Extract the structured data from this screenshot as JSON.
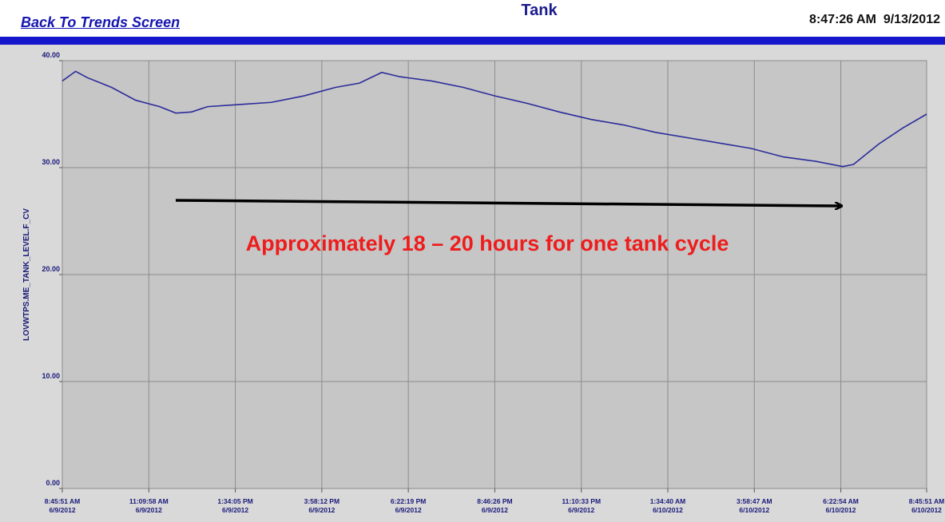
{
  "header": {
    "link": "Back To Trends Screen",
    "title": "Tank",
    "clock": "8:47:26 AM  9/13/2012"
  },
  "chart_data": {
    "type": "line",
    "y_label": "LOVWTPS.ME_TANK_LEVEL.F_CV",
    "annotation": "Approximately 18 – 20 hours for one tank cycle",
    "xlim": [
      "2012-06-09T08:45:51",
      "2012-06-10T08:45:51"
    ],
    "xticks": [
      {
        "value": "2012-06-09T08:45:51",
        "label": "8:45:51 AM\n6/9/2012"
      },
      {
        "value": "2012-06-09T11:09:58",
        "label": "11:09:58 AM\n6/9/2012"
      },
      {
        "value": "2012-06-09T13:34:05",
        "label": "1:34:05 PM\n6/9/2012"
      },
      {
        "value": "2012-06-09T15:58:12",
        "label": "3:58:12 PM\n6/9/2012"
      },
      {
        "value": "2012-06-09T18:22:19",
        "label": "6:22:19 PM\n6/9/2012"
      },
      {
        "value": "2012-06-09T20:46:26",
        "label": "8:46:26 PM\n6/9/2012"
      },
      {
        "value": "2012-06-09T23:10:33",
        "label": "11:10:33 PM\n6/9/2012"
      },
      {
        "value": "2012-06-10T01:34:40",
        "label": "1:34:40 AM\n6/10/2012"
      },
      {
        "value": "2012-06-10T03:58:47",
        "label": "3:58:47 AM\n6/10/2012"
      },
      {
        "value": "2012-06-10T06:22:54",
        "label": "6:22:54 AM\n6/10/2012"
      },
      {
        "value": "2012-06-10T08:45:51",
        "label": "8:45:51 AM\n6/10/2012"
      }
    ],
    "ylim": [
      0,
      40
    ],
    "yticks": [
      {
        "value": 0,
        "label": "0.00"
      },
      {
        "value": 10,
        "label": "10.00"
      },
      {
        "value": 20,
        "label": "20.00"
      },
      {
        "value": 30,
        "label": "30.00"
      },
      {
        "value": 40,
        "label": "40.00"
      }
    ],
    "grid": true,
    "series": [
      {
        "color": "#2b2b9a",
        "x": [
          "2012-06-09T08:45:51",
          "2012-06-09T09:08",
          "2012-06-09T09:28",
          "2012-06-09T10:08",
          "2012-06-09T10:48",
          "2012-06-09T11:28",
          "2012-06-09T11:55",
          "2012-06-09T12:21",
          "2012-06-09T12:48",
          "2012-06-09T13:41",
          "2012-06-09T14:34",
          "2012-06-09T15:28",
          "2012-06-09T16:21",
          "2012-06-09T17:01",
          "2012-06-09T17:38",
          "2012-06-09T18:08",
          "2012-06-09T19:01",
          "2012-06-09T19:54",
          "2012-06-09T20:47",
          "2012-06-09T21:41",
          "2012-06-09T22:34",
          "2012-06-09T23:27",
          "2012-06-10T00:20",
          "2012-06-10T01:14",
          "2012-06-10T02:07",
          "2012-06-10T03:00",
          "2012-06-10T03:53",
          "2012-06-10T04:47",
          "2012-06-10T05:40",
          "2012-06-10T06:26",
          "2012-06-10T06:44",
          "2012-06-10T07:26",
          "2012-06-10T08:06",
          "2012-06-10T08:45:51"
        ],
        "values": [
          38.1,
          39.0,
          38.4,
          37.5,
          36.3,
          35.7,
          35.1,
          35.2,
          35.7,
          35.9,
          36.1,
          36.7,
          37.5,
          37.9,
          38.9,
          38.5,
          38.1,
          37.5,
          36.7,
          36.0,
          35.2,
          34.5,
          34.0,
          33.3,
          32.8,
          32.3,
          31.8,
          31.0,
          30.6,
          30.1,
          30.3,
          32.2,
          33.7,
          35.0
        ]
      }
    ]
  }
}
